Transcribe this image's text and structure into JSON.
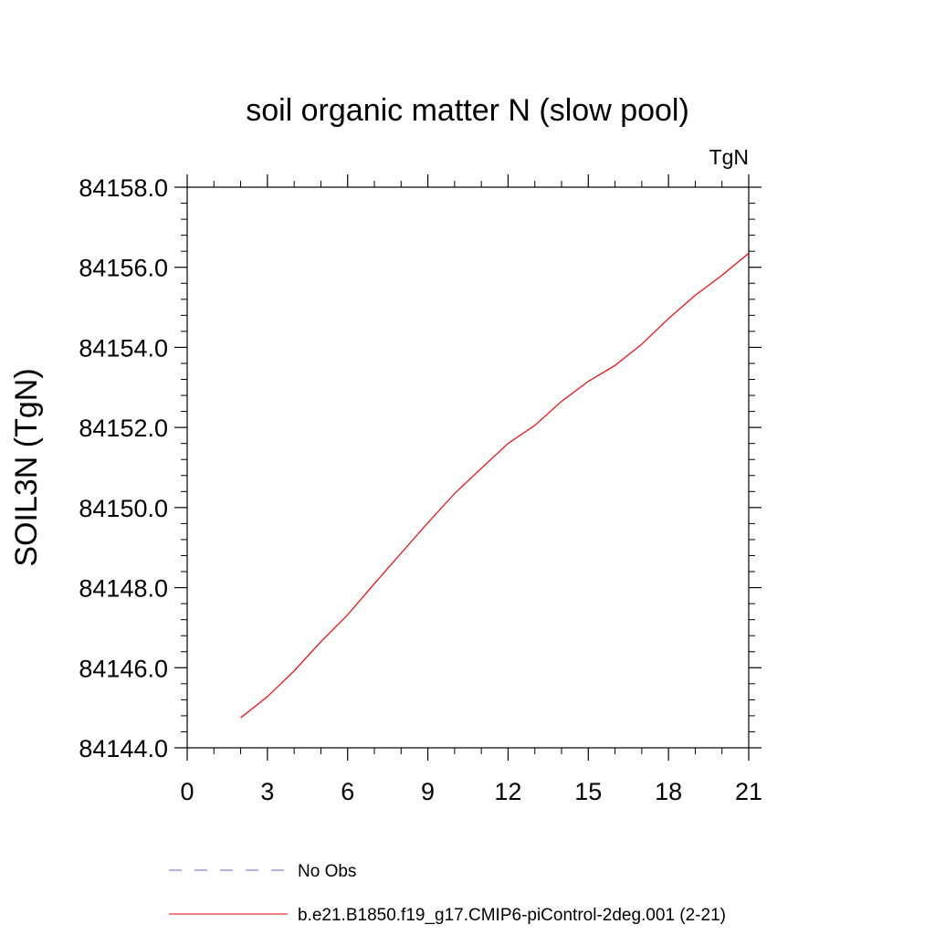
{
  "chart_data": {
    "type": "line",
    "title": "soil organic matter N (slow pool)",
    "units_label": "TgN",
    "xlabel": "",
    "ylabel": "SOIL3N  (TgN)",
    "xlim": [
      0,
      21
    ],
    "ylim": [
      84144.0,
      84158.0
    ],
    "x_ticks": [
      0,
      3,
      6,
      9,
      12,
      15,
      18,
      21
    ],
    "y_ticks": [
      84144.0,
      84146.0,
      84148.0,
      84150.0,
      84152.0,
      84154.0,
      84156.0,
      84158.0
    ],
    "x_tick_labels": [
      "0",
      "3",
      "6",
      "9",
      "12",
      "15",
      "18",
      "21"
    ],
    "y_tick_labels": [
      "84144.0",
      "84146.0",
      "84148.0",
      "84150.0",
      "84152.0",
      "84154.0",
      "84156.0",
      "84158.0"
    ],
    "series": [
      {
        "name": "b.e21.B1850.f19_g17.CMIP6-piControl-2deg.001 (2-21)",
        "color": "#ff0000",
        "style": "solid",
        "x": [
          2,
          3,
          4,
          5,
          6,
          7,
          8,
          9,
          10,
          11,
          12,
          13,
          14,
          15,
          16,
          17,
          18,
          19,
          20,
          21
        ],
        "values": [
          84144.75,
          84145.28,
          84145.92,
          84146.65,
          84147.32,
          84148.1,
          84148.86,
          84149.62,
          84150.35,
          84150.98,
          84151.6,
          84152.05,
          84152.65,
          84153.15,
          84153.55,
          84154.08,
          84154.72,
          84155.3,
          84155.8,
          84156.35
        ]
      }
    ],
    "legend": [
      {
        "label": "No Obs",
        "color": "#8a84c8",
        "style": "dashed"
      },
      {
        "label": "b.e21.B1850.f19_g17.CMIP6-piControl-2deg.001 (2-21)",
        "color": "#ff0000",
        "style": "solid"
      }
    ],
    "legend_position": "bottom"
  }
}
